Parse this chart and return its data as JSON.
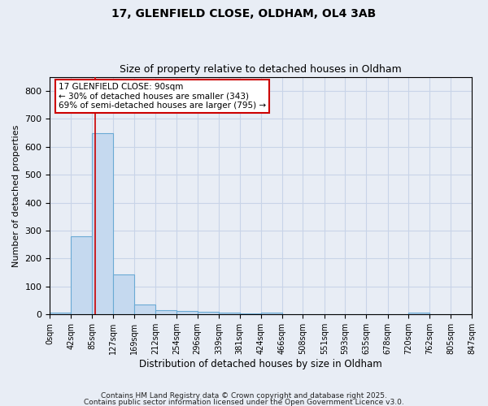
{
  "title1": "17, GLENFIELD CLOSE, OLDHAM, OL4 3AB",
  "title2": "Size of property relative to detached houses in Oldham",
  "xlabel": "Distribution of detached houses by size in Oldham",
  "ylabel": "Number of detached properties",
  "bin_edges": [
    0,
    42,
    85,
    127,
    169,
    212,
    254,
    296,
    339,
    381,
    424,
    466,
    508,
    551,
    593,
    635,
    678,
    720,
    762,
    805,
    847
  ],
  "bar_heights": [
    8,
    280,
    648,
    142,
    36,
    16,
    13,
    10,
    8,
    5,
    8,
    0,
    0,
    0,
    0,
    0,
    0,
    8,
    0,
    0
  ],
  "bar_color": "#c5d9ef",
  "bar_edgecolor": "#6aaad4",
  "grid_color": "#c8d4e8",
  "background_color": "#e8edf5",
  "vline_x": 90,
  "vline_color": "#cc0000",
  "annotation_line1": "17 GLENFIELD CLOSE: 90sqm",
  "annotation_line2": "← 30% of detached houses are smaller (343)",
  "annotation_line3": "69% of semi-detached houses are larger (795) →",
  "annotation_box_color": "#ffffff",
  "annotation_border_color": "#cc0000",
  "ylim": [
    0,
    850
  ],
  "yticks": [
    0,
    100,
    200,
    300,
    400,
    500,
    600,
    700,
    800
  ],
  "footer1": "Contains HM Land Registry data © Crown copyright and database right 2025.",
  "footer2": "Contains public sector information licensed under the Open Government Licence v3.0."
}
